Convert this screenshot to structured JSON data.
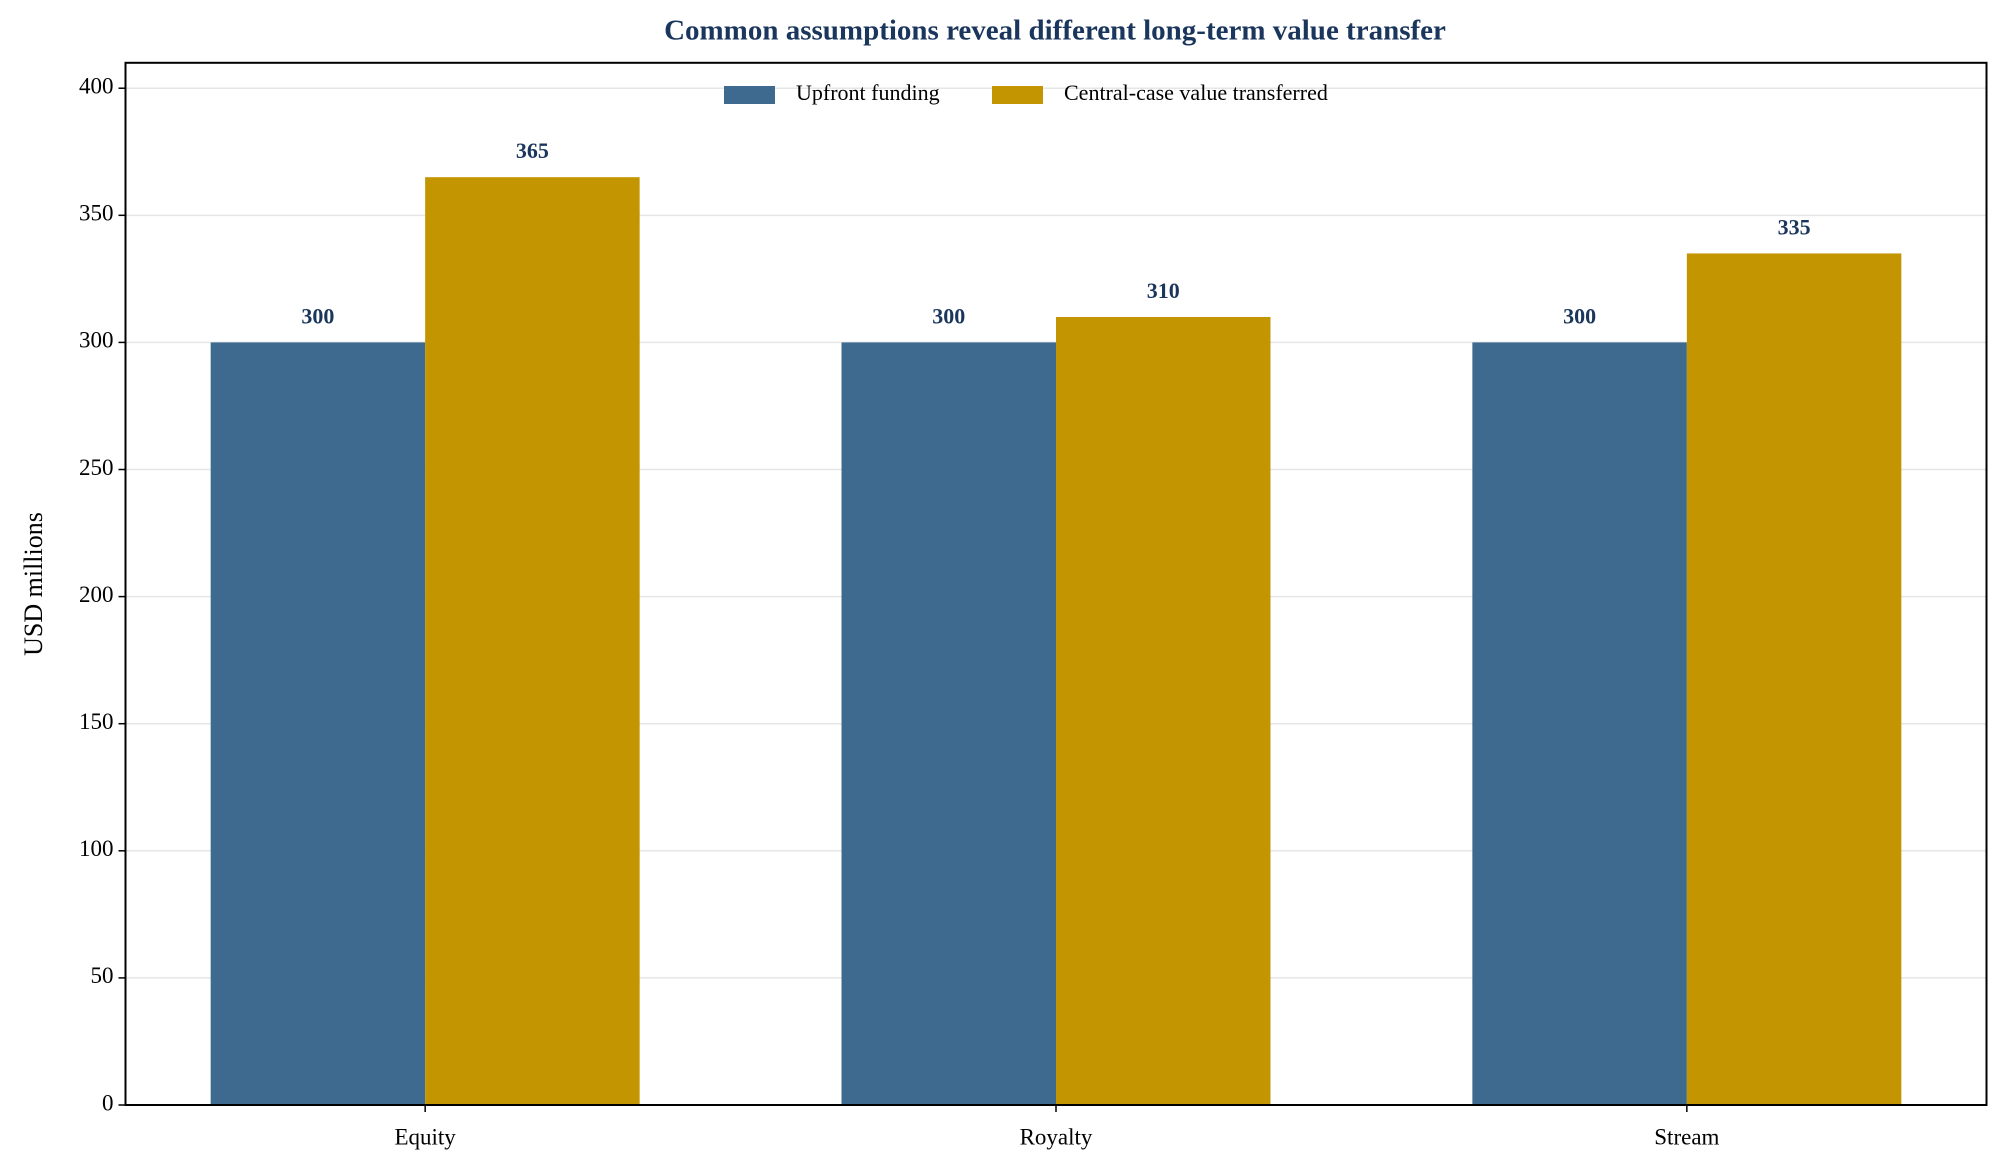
{
  "chart_data": {
    "type": "bar",
    "title": "Common assumptions reveal different long-term value transfer",
    "y_label": "USD millions",
    "categories": [
      "Equity",
      "Royalty",
      "Stream"
    ],
    "series": [
      {
        "name": "Upfront funding",
        "color": "#3d6a8e",
        "values": [
          300,
          300,
          300
        ]
      },
      {
        "name": "Central-case value transferred",
        "color": "#c39500",
        "values": [
          365,
          310,
          335
        ]
      }
    ],
    "ylim": [
      0,
      410
    ],
    "yticks": [
      0,
      50,
      100,
      150,
      200,
      250,
      300,
      350,
      400
    ],
    "grid": true,
    "legend": "upper center",
    "value_label_color": "#1b365d"
  }
}
